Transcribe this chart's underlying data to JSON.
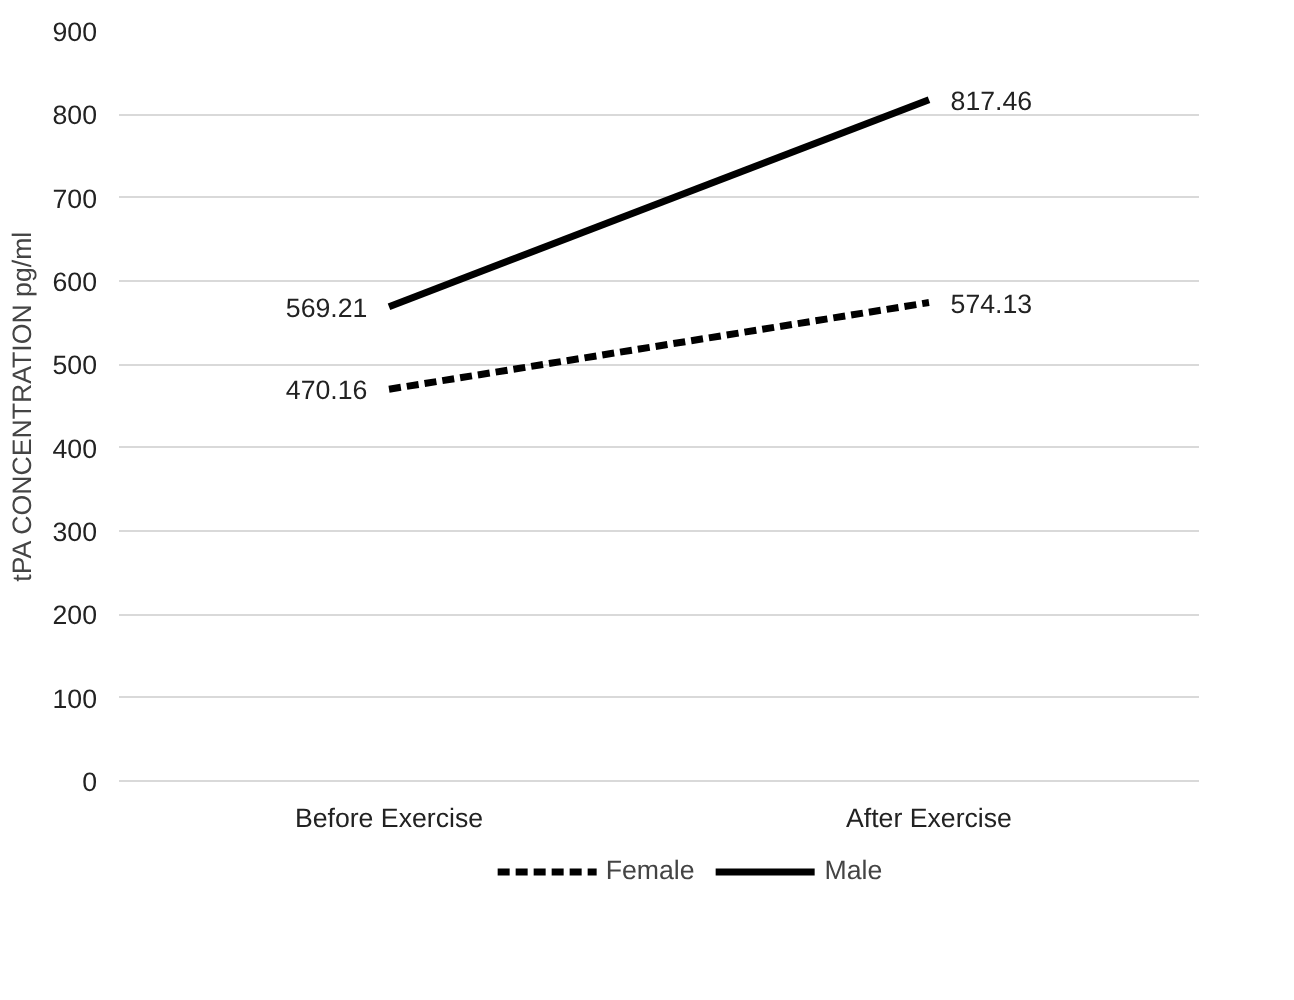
{
  "chart_data": {
    "type": "line",
    "ylabel": "tPA CONCENTRATION pg/ml",
    "categories": [
      "Before Exercise",
      "After Exercise"
    ],
    "series": [
      {
        "name": "Female",
        "color": "#000000",
        "values": [
          470.16,
          574.13
        ],
        "line_style": "dashed"
      },
      {
        "name": "Male",
        "color": "#000000",
        "values": [
          569.21,
          817.46
        ],
        "line_style": "solid"
      }
    ],
    "ylim": [
      0,
      900
    ],
    "yticks": [
      0,
      100,
      200,
      300,
      400,
      500,
      600,
      700,
      800,
      900
    ],
    "grid": "y",
    "legend": "bottom",
    "data_labels": true,
    "marker": "none"
  }
}
